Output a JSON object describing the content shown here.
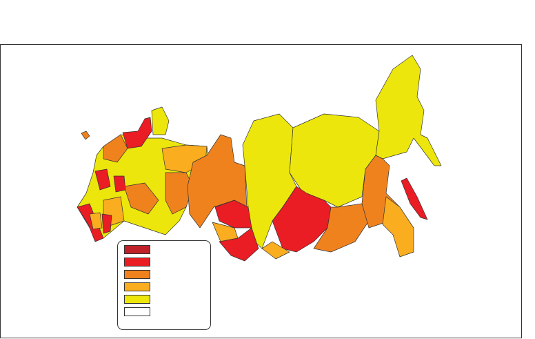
{
  "legend": {
    "colors": [
      "#c0202a",
      "#ea1c24",
      "#f0821e",
      "#f9ad1f",
      "#ece60c",
      "#ffffff"
    ]
  }
}
